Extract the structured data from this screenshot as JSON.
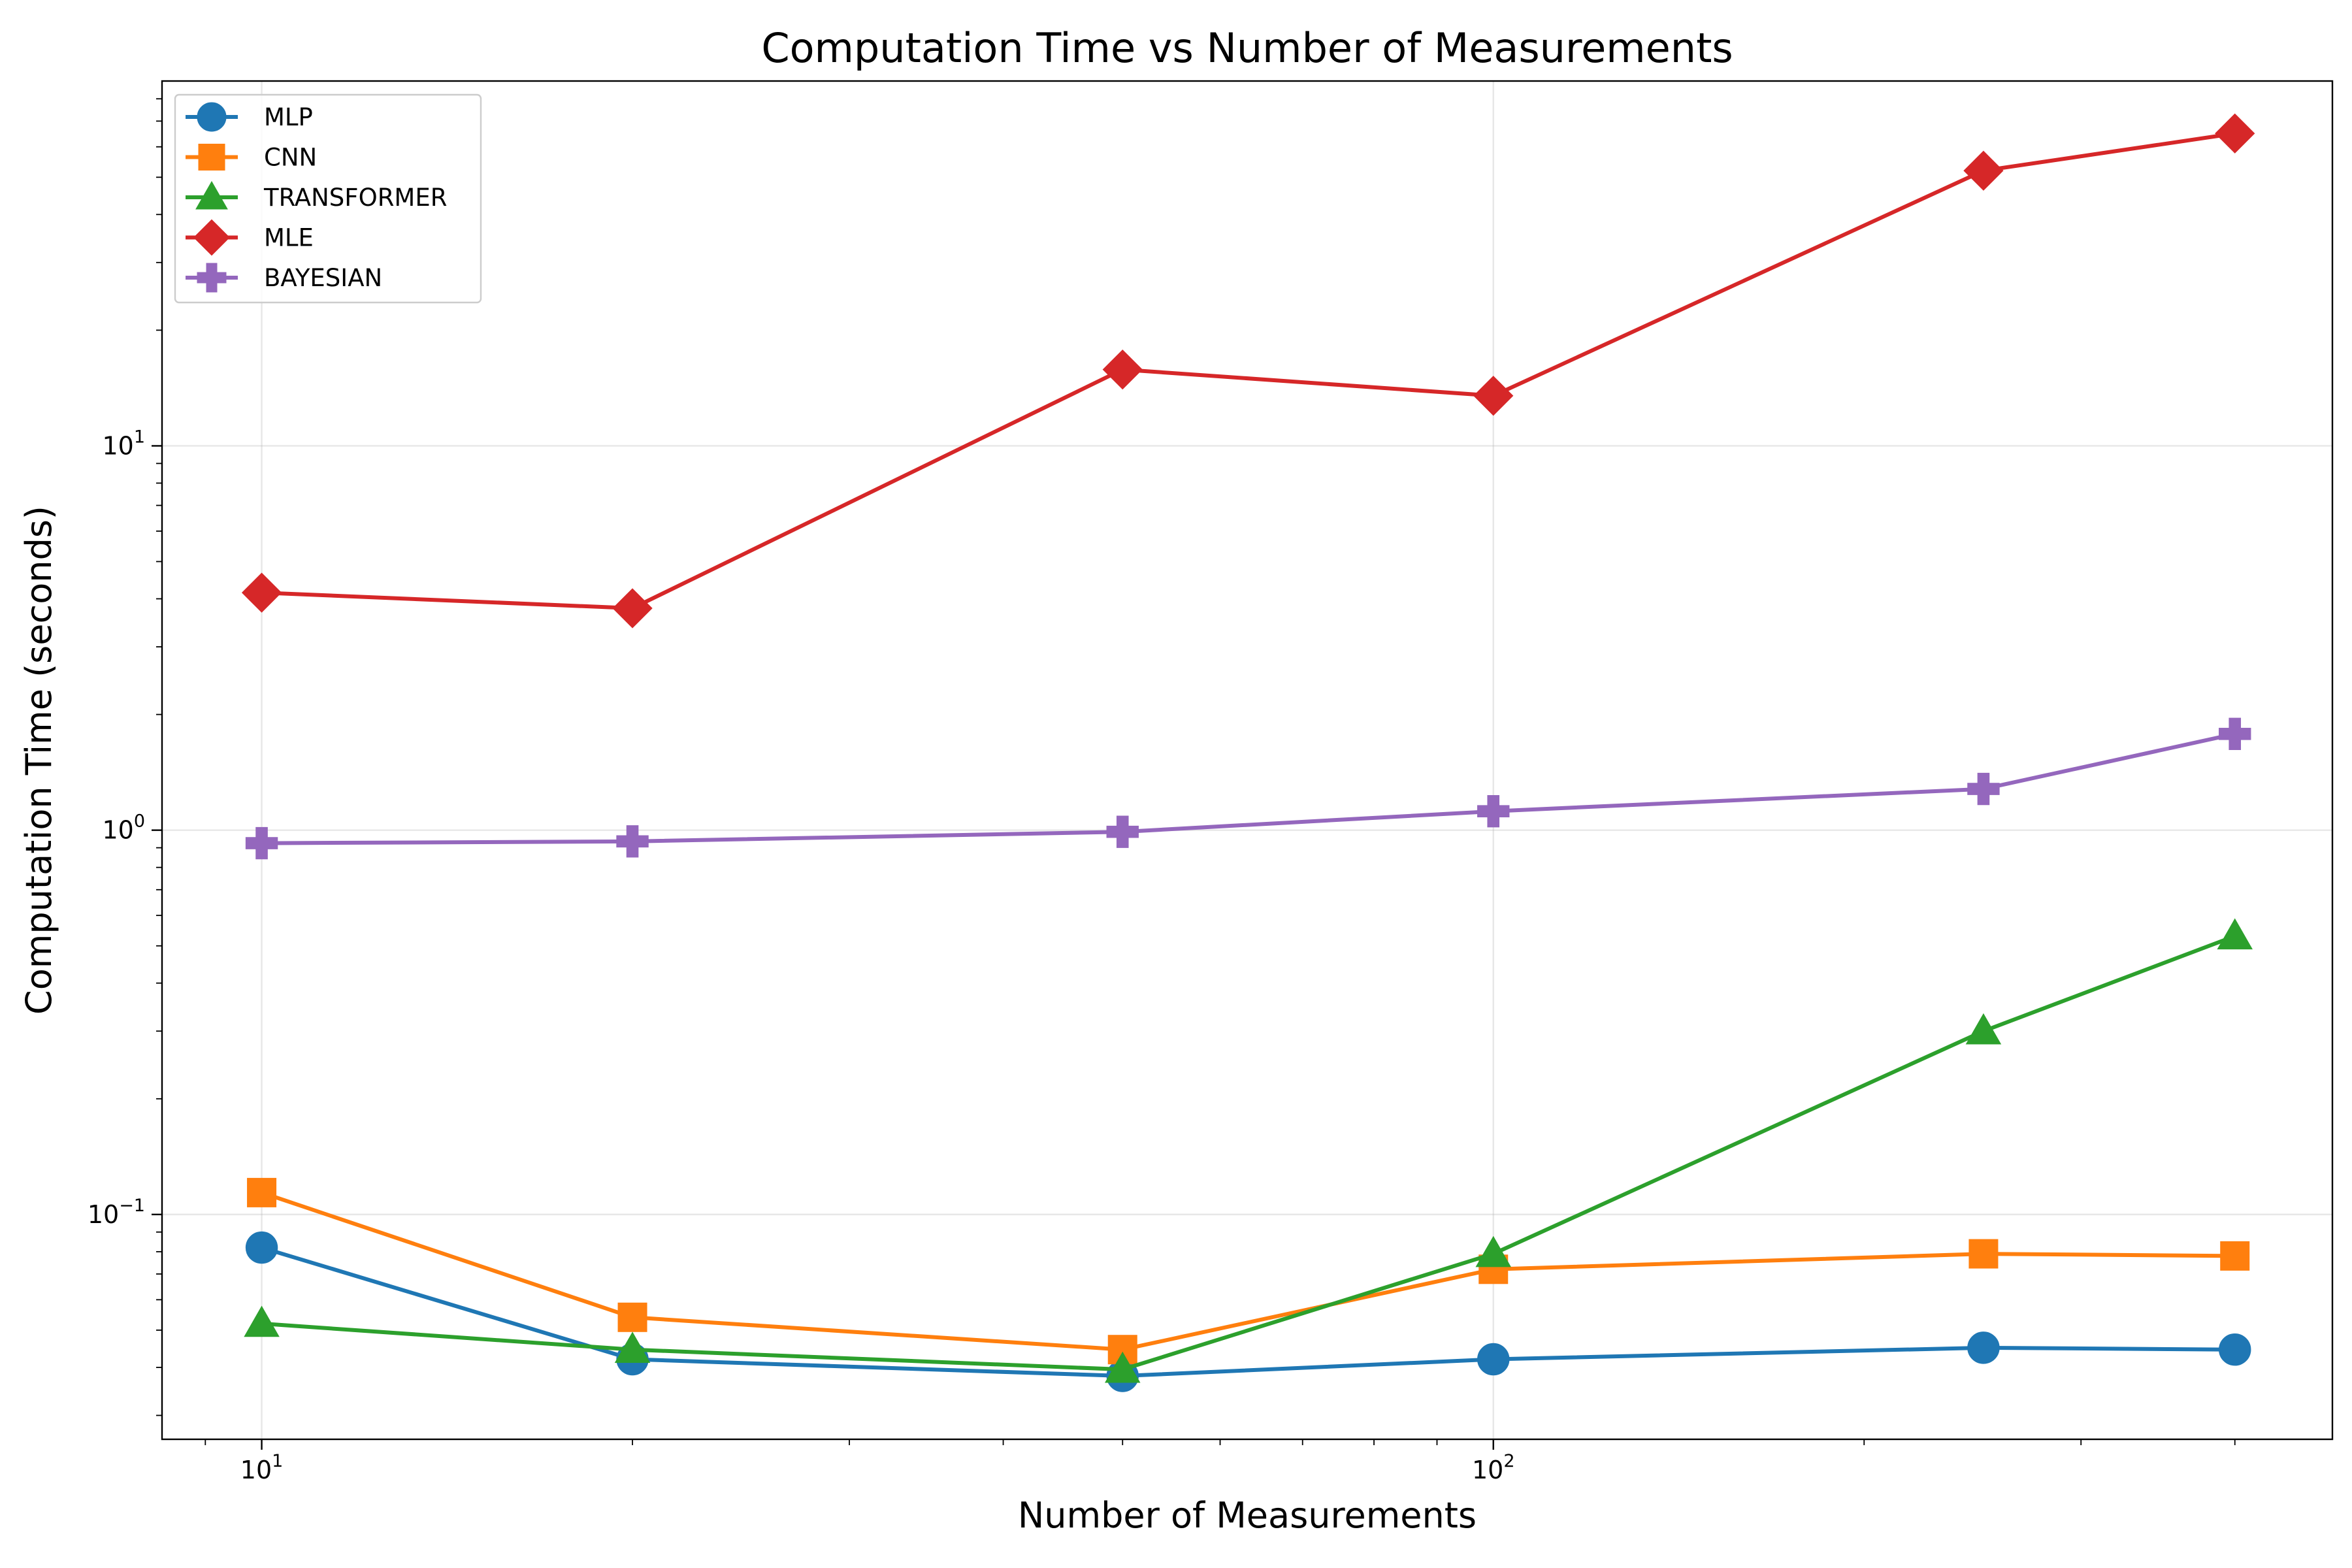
{
  "chart_data": {
    "type": "line",
    "title": "Computation Time vs Number of Measurements",
    "xlabel": "Number of Measurements",
    "ylabel": "Computation Time (seconds)",
    "x_scale": "log",
    "y_scale": "log",
    "xlim": [
      8.3,
      480
    ],
    "ylim": [
      0.026,
      89
    ],
    "grid": true,
    "legend_position": "top-left",
    "x_ticks": [
      {
        "value": 10,
        "base": "10",
        "exp": "1"
      },
      {
        "value": 100,
        "base": "10",
        "exp": "2"
      }
    ],
    "y_ticks": [
      {
        "value": 0.1,
        "base": "10",
        "exp": "−1"
      },
      {
        "value": 1,
        "base": "10",
        "exp": "0"
      },
      {
        "value": 10,
        "base": "10",
        "exp": "1"
      }
    ],
    "x": [
      10,
      20,
      50,
      100,
      250,
      400
    ],
    "series": [
      {
        "name": "MLP",
        "color": "#1f77b4",
        "marker": "circle",
        "values": [
          0.082,
          0.042,
          0.038,
          0.042,
          0.045,
          0.0445
        ]
      },
      {
        "name": "CNN",
        "color": "#ff7f0e",
        "marker": "square",
        "values": [
          0.114,
          0.054,
          0.0445,
          0.072,
          0.079,
          0.078
        ]
      },
      {
        "name": "TRANSFORMER",
        "color": "#2ca02c",
        "marker": "triangle",
        "values": [
          0.052,
          0.0445,
          0.0395,
          0.079,
          0.3,
          0.53
        ]
      },
      {
        "name": "MLE",
        "color": "#d62728",
        "marker": "diamond",
        "values": [
          4.15,
          3.78,
          15.8,
          13.5,
          52.0,
          65.0
        ]
      },
      {
        "name": "BAYESIAN",
        "color": "#9467bd",
        "marker": "plus",
        "values": [
          0.925,
          0.935,
          0.99,
          1.12,
          1.28,
          1.78
        ]
      }
    ]
  }
}
